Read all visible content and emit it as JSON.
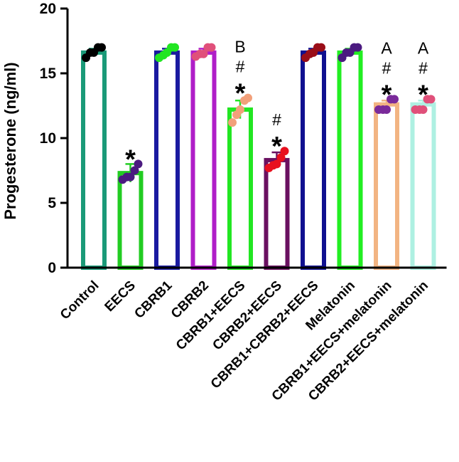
{
  "chart_data": {
    "type": "bar",
    "title": "",
    "xlabel": "",
    "ylabel": "Progesterone (ng/ml)",
    "ylim": [
      0,
      20
    ],
    "yticks": [
      0,
      5,
      10,
      15,
      20
    ],
    "grid": false,
    "categories": [
      "Control",
      "EECS",
      "CBRB1",
      "CBRB2",
      "CBRB1+EECS",
      "CBRB2+EECS",
      "CBRB1+CBRB2+EECS",
      "Melatonin",
      "CBRB1+EECS+melatonin",
      "CBRB2+EECS+melatonin"
    ],
    "values": [
      16.6,
      7.3,
      16.6,
      16.6,
      12.2,
      8.3,
      16.6,
      16.6,
      12.6,
      12.6
    ],
    "errors": [
      0.3,
      0.7,
      0.3,
      0.3,
      0.7,
      0.6,
      0.3,
      0.3,
      0.3,
      0.3
    ],
    "bar_colors": [
      "#1a9a78",
      "#22cc22",
      "#1a1aa0",
      "#b01ec8",
      "#22e622",
      "#6a1060",
      "#101090",
      "#22ee22",
      "#f2b482",
      "#aef0e2"
    ],
    "dot_colors": [
      "#000000",
      "#4b1a80",
      "#22e622",
      "#e0507a",
      "#f2a07a",
      "#e8101e",
      "#9a0e18",
      "#4b1a80",
      "#7a2a9a",
      "#e0507a"
    ],
    "points": [
      [
        16.2,
        16.6,
        16.6,
        17.0,
        17.0
      ],
      [
        6.8,
        7.0,
        7.0,
        7.5,
        8.0
      ],
      [
        16.2,
        16.4,
        16.6,
        17.0,
        17.0
      ],
      [
        16.3,
        16.5,
        16.5,
        17.0,
        17.0
      ],
      [
        11.2,
        11.8,
        12.2,
        12.9,
        13.1
      ],
      [
        7.7,
        7.9,
        8.0,
        8.5,
        9.0
      ],
      [
        16.2,
        16.5,
        16.6,
        17.0,
        17.0
      ],
      [
        16.2,
        16.6,
        16.6,
        17.0,
        17.0
      ],
      [
        12.2,
        12.2,
        12.2,
        13.0,
        13.0
      ],
      [
        12.2,
        12.2,
        12.2,
        13.0,
        13.0
      ]
    ],
    "annotations": [
      [],
      [
        "*"
      ],
      [],
      [],
      [
        "*",
        "#",
        "B"
      ],
      [
        "*",
        "#"
      ],
      [],
      [],
      [
        "*",
        "#",
        "A"
      ],
      [
        "*",
        "#",
        "A"
      ]
    ]
  }
}
